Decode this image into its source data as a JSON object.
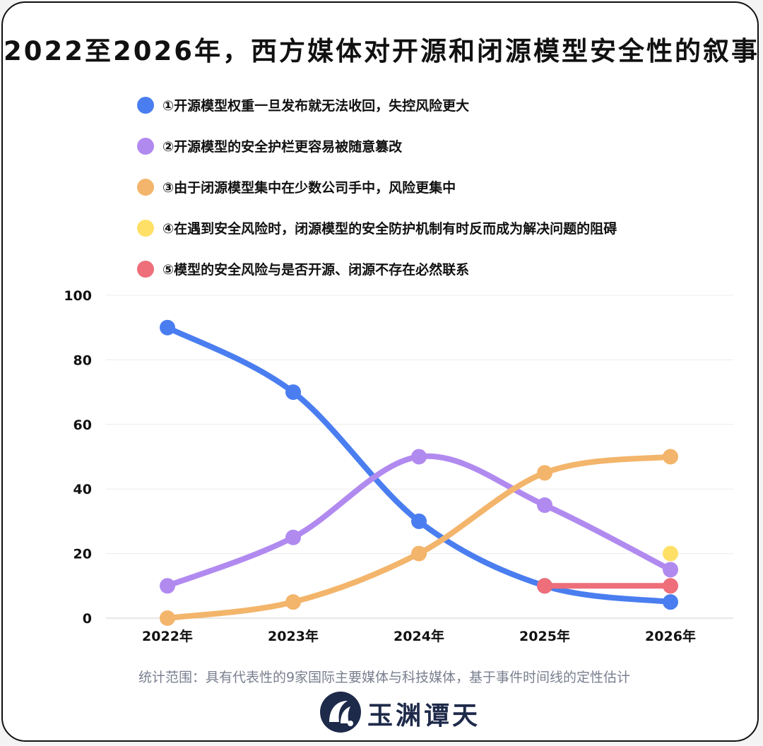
{
  "chart_data": {
    "type": "line",
    "title": "2022至2026年，西方媒体对开源和闭源模型安全性的叙事",
    "categories": [
      "2022年",
      "2023年",
      "2024年",
      "2025年",
      "2026年"
    ],
    "ylim": [
      0,
      100
    ],
    "yticks": [
      0,
      20,
      40,
      60,
      80,
      100
    ],
    "grid": true,
    "legend_position": "top",
    "series": [
      {
        "name": "①开源模型权重一旦发布就无法收回，失控风险更大",
        "color": "#4a7ef0",
        "values": [
          90,
          70,
          30,
          10,
          5
        ]
      },
      {
        "name": "②开源模型的安全护栏更容易被随意篡改",
        "color": "#b18af0",
        "values": [
          10,
          25,
          50,
          35,
          15
        ]
      },
      {
        "name": "③由于闭源模型集中在少数公司手中，风险更集中",
        "color": "#f3b56b",
        "values": [
          0,
          5,
          20,
          45,
          50
        ]
      },
      {
        "name": "④在遇到安全风险时，闭源模型的安全防护机制有时反而成为解决问题的阻碍",
        "color": "#ffe066",
        "values": [
          null,
          null,
          null,
          null,
          20
        ]
      },
      {
        "name": "⑤模型的安全风险与是否开源、闭源不存在必然联系",
        "color": "#ee6e7a",
        "values": [
          null,
          null,
          null,
          10,
          10
        ]
      }
    ]
  },
  "source_note": "统计范围：具有代表性的9家国际主要媒体与科技媒体，基于事件时间线的定性估计",
  "brand": {
    "name": "玉渊谭天",
    "logo_icon": "brand-logo-icon"
  }
}
